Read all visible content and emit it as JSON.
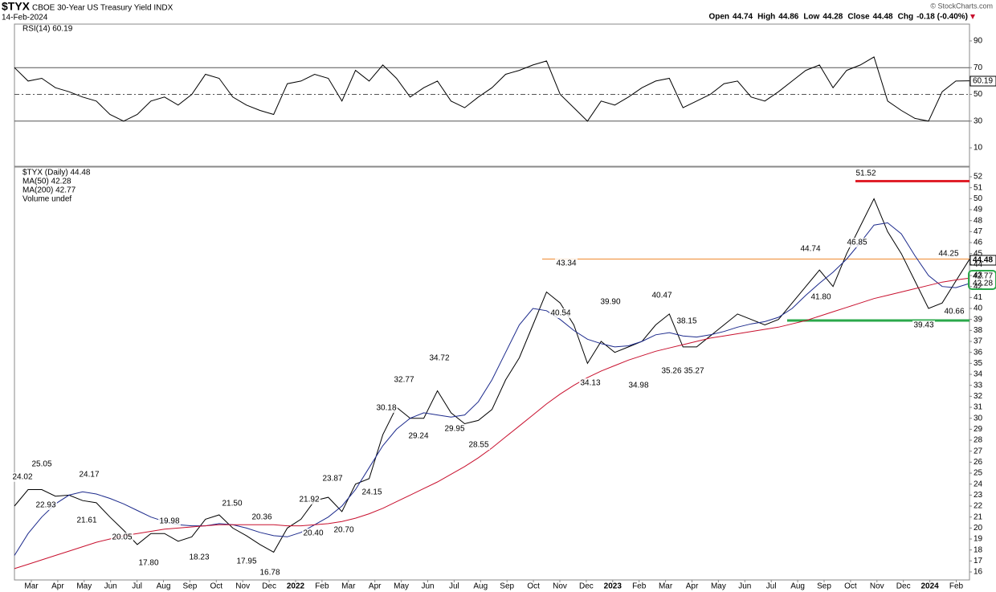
{
  "header": {
    "symbol": "$TYX",
    "name": "CBOE 30-Year US Treasury Yield INDX",
    "date": "14-Feb-2024",
    "credit": "© StockCharts.com",
    "quote": [
      {
        "label": "Open",
        "value": "44.74"
      },
      {
        "label": "High",
        "value": "44.86"
      },
      {
        "label": "Low",
        "value": "44.28"
      },
      {
        "label": "Close",
        "value": "44.48"
      },
      {
        "label": "Chg",
        "value": "-0.18 (-0.40%)"
      }
    ]
  },
  "time_axis": [
    "Mar",
    "Apr",
    "May",
    "Jun",
    "Jul",
    "Aug",
    "Sep",
    "Oct",
    "Nov",
    "Dec",
    "2022",
    "Feb",
    "Mar",
    "Apr",
    "May",
    "Jun",
    "Jul",
    "Aug",
    "Sep",
    "Oct",
    "Nov",
    "Dec",
    "2023",
    "Feb",
    "Mar",
    "Apr",
    "May",
    "Jun",
    "Jul",
    "Aug",
    "Sep",
    "Oct",
    "Nov",
    "Dec",
    "2024",
    "Feb"
  ],
  "chart_data": [
    {
      "type": "line",
      "ylim": [
        -3.8,
        102.6
      ],
      "yticks": [
        10,
        30,
        50,
        70,
        90
      ],
      "levels": [
        {
          "value": 70,
          "style": "solid"
        },
        {
          "value": 50,
          "style": "dashdot"
        },
        {
          "value": 30,
          "style": "solid"
        }
      ],
      "series": [
        {
          "name": "RSI(14) 60.19",
          "color": "#000000",
          "last_label": "60.19",
          "values": [
            70,
            60,
            62,
            55,
            52,
            48,
            45,
            35,
            30,
            35,
            45,
            48,
            42,
            50,
            65,
            62,
            48,
            42,
            38,
            35,
            58,
            60,
            65,
            62,
            45,
            68,
            60,
            72,
            62,
            48,
            55,
            60,
            45,
            40,
            48,
            55,
            65,
            68,
            72,
            75,
            50,
            40,
            30,
            45,
            42,
            48,
            55,
            60,
            62,
            40,
            45,
            50,
            58,
            60,
            48,
            45,
            52,
            60,
            68,
            72,
            55,
            68,
            72,
            78,
            45,
            38,
            32,
            30,
            52,
            60,
            60.19
          ]
        }
      ]
    },
    {
      "type": "line",
      "ylim": [
        15.27,
        52.88
      ],
      "yticks": [
        16,
        17,
        18,
        19,
        20,
        21,
        22,
        23,
        24,
        25,
        26,
        27,
        28,
        29,
        30,
        31,
        32,
        33,
        34,
        35,
        36,
        37,
        38,
        39,
        40,
        41,
        42,
        43,
        44,
        45,
        46,
        47,
        48,
        49,
        50,
        51,
        52
      ],
      "levels": [
        {
          "value": 51.6,
          "color": "#e0202a"
        },
        {
          "value": 44.5,
          "color": "#f08a30"
        },
        {
          "value": 38.9,
          "color": "#2aa84a"
        }
      ],
      "series": [
        {
          "name": "$TYX (Daily) 44.48",
          "color": "#000000",
          "last_label": "44.48",
          "values": [
            22.0,
            23.5,
            23.5,
            22.9,
            23.0,
            22.5,
            22.3,
            21.0,
            19.8,
            18.5,
            19.5,
            19.5,
            18.8,
            19.2,
            20.8,
            21.2,
            20.0,
            19.3,
            18.5,
            17.8,
            20.0,
            20.8,
            22.5,
            22.8,
            21.5,
            24.0,
            24.5,
            28.5,
            31.0,
            30.0,
            30.0,
            32.5,
            30.5,
            29.5,
            29.8,
            30.8,
            33.5,
            35.5,
            38.5,
            41.5,
            40.5,
            38.5,
            35.0,
            37.0,
            36.0,
            36.5,
            37.0,
            38.5,
            39.5,
            36.5,
            36.5,
            37.5,
            38.5,
            39.5,
            39.0,
            38.5,
            39.0,
            40.5,
            42.0,
            43.5,
            42.0,
            45.0,
            47.5,
            50.0,
            47.0,
            45.0,
            42.5,
            40.0,
            40.5,
            42.5,
            44.48
          ]
        },
        {
          "name": "MA(50) 42.28",
          "color": "#1c2a8c",
          "last_label": "42.28",
          "values": [
            17.5,
            19.5,
            21.0,
            22.2,
            23.0,
            23.3,
            23.1,
            22.7,
            22.2,
            21.6,
            21.0,
            20.6,
            20.3,
            20.2,
            20.2,
            20.4,
            20.3,
            20.0,
            19.6,
            19.3,
            19.2,
            19.6,
            20.3,
            21.0,
            22.0,
            23.5,
            25.5,
            27.5,
            29.0,
            30.0,
            30.5,
            30.3,
            30.1,
            30.3,
            31.5,
            33.5,
            36.0,
            38.5,
            40.0,
            39.8,
            39.0,
            38.0,
            37.2,
            36.8,
            36.5,
            36.6,
            37.0,
            37.6,
            37.8,
            37.5,
            37.4,
            37.6,
            37.9,
            38.3,
            38.6,
            38.8,
            39.2,
            40.0,
            41.2,
            42.3,
            43.3,
            44.5,
            46.0,
            47.6,
            47.8,
            46.8,
            44.8,
            43.0,
            42.0,
            41.9,
            42.28
          ]
        },
        {
          "name": "MA(200) 42.77",
          "color": "#c8102e",
          "last_label": "42.77",
          "values": [
            16.3,
            16.7,
            17.1,
            17.5,
            17.9,
            18.3,
            18.7,
            19.0,
            19.3,
            19.5,
            19.7,
            19.9,
            20.0,
            20.1,
            20.2,
            20.3,
            20.3,
            20.3,
            20.3,
            20.3,
            20.2,
            20.2,
            20.3,
            20.4,
            20.6,
            20.9,
            21.3,
            21.8,
            22.4,
            23.0,
            23.6,
            24.2,
            24.9,
            25.6,
            26.4,
            27.3,
            28.3,
            29.3,
            30.3,
            31.3,
            32.2,
            33.0,
            33.7,
            34.3,
            34.8,
            35.3,
            35.7,
            36.1,
            36.4,
            36.7,
            37.0,
            37.3,
            37.5,
            37.7,
            37.9,
            38.1,
            38.3,
            38.6,
            38.9,
            39.3,
            39.7,
            40.1,
            40.5,
            40.9,
            41.2,
            41.5,
            41.8,
            42.1,
            42.4,
            42.6,
            42.77
          ]
        }
      ],
      "volume_note": "Volume undef",
      "annotations": [
        "24.02",
        "25.05",
        "22.93",
        "24.17",
        "21.61",
        "20.05",
        "17.80",
        "19.98",
        "18.23",
        "21.50",
        "20.36",
        "17.95",
        "16.78",
        "21.92",
        "20.40",
        "23.87",
        "20.70",
        "24.15",
        "30.18",
        "32.77",
        "29.24",
        "34.72",
        "29.95",
        "28.55",
        "43.34",
        "40.54",
        "39.90",
        "34.13",
        "34.98",
        "40.47",
        "38.15",
        "35.26",
        "35.27",
        "44.74",
        "41.80",
        "46.85",
        "51.52",
        "44.25",
        "39.43",
        "40.66"
      ]
    }
  ]
}
